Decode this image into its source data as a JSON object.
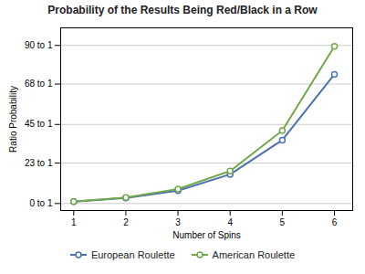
{
  "chart_data": {
    "type": "line",
    "title": "Probability of the Results Being Red/Black in a Row",
    "xlabel": "Number of Spins",
    "ylabel": "Ratio Probability",
    "x": [
      1,
      2,
      3,
      4,
      5,
      6
    ],
    "series": [
      {
        "name": "European Roulette",
        "color": "#4a72b0",
        "marker": "circle",
        "values": [
          1.056,
          3.16,
          7.34,
          16.6,
          36.1,
          73.5
        ]
      },
      {
        "name": "American Roulette",
        "color": "#70a84a",
        "marker": "circle",
        "values": [
          1.111,
          3.44,
          8.28,
          18.5,
          41.5,
          89.5
        ]
      }
    ],
    "xlim": [
      0.75,
      6.35
    ],
    "xticks": [
      1,
      2,
      3,
      4,
      5,
      6
    ],
    "ylim": [
      -4,
      100
    ],
    "yticks": [
      {
        "value": 0,
        "label": "0 to 1"
      },
      {
        "value": 23,
        "label": "23 to 1"
      },
      {
        "value": 45,
        "label": "45 to 1"
      },
      {
        "value": 68,
        "label": "68 to 1"
      },
      {
        "value": 90,
        "label": "90 to 1"
      }
    ],
    "grid": "y",
    "legend": "bottom"
  }
}
